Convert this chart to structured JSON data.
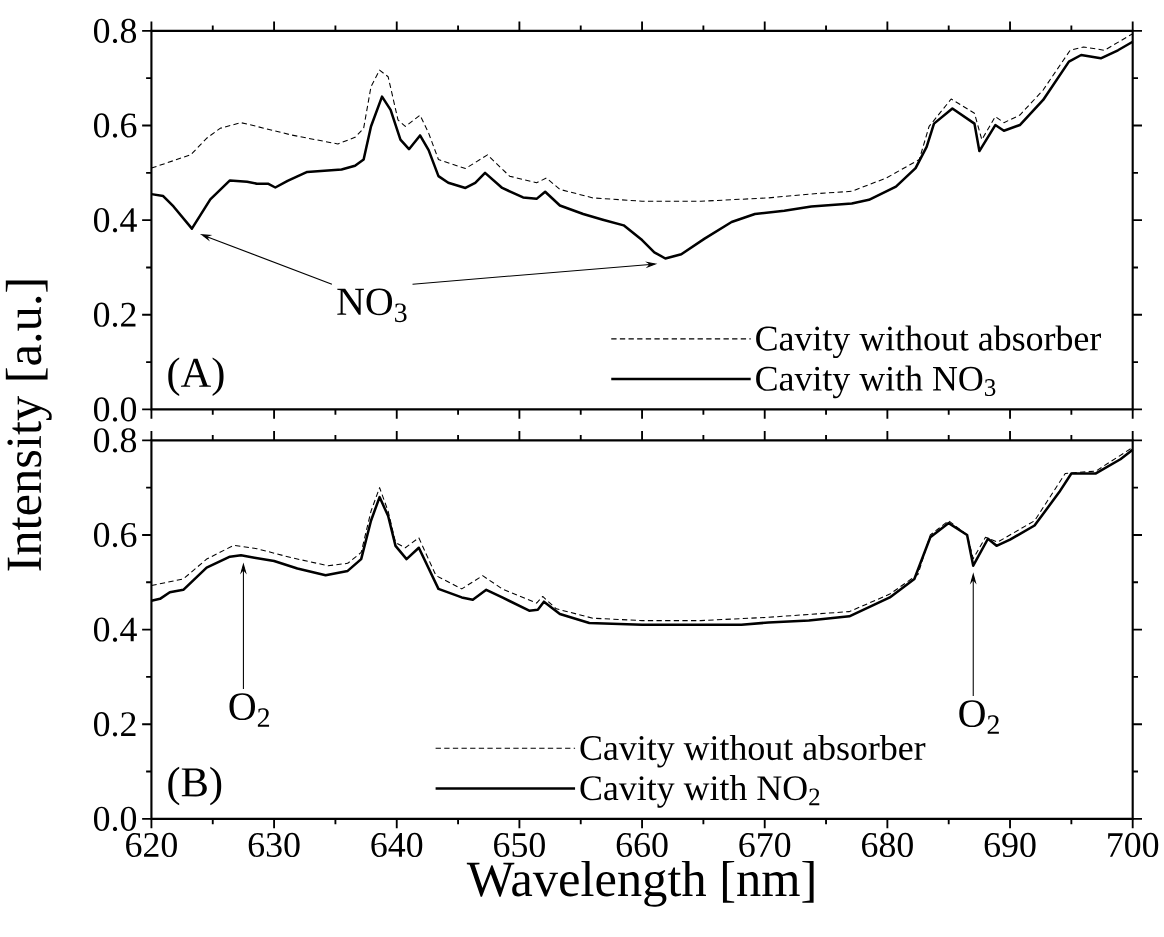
{
  "chart_data": [
    {
      "type": "line",
      "title": "(A)",
      "ylabel": "Intensity [a.u.]",
      "xlim": [
        620,
        700
      ],
      "ylim": [
        0,
        0.8
      ],
      "xticks": [
        620,
        630,
        640,
        650,
        660,
        670,
        680,
        690,
        700
      ],
      "yticks": [
        {
          "value": 0,
          "label": "0.0"
        },
        {
          "value": 0.2,
          "label": "0.2"
        },
        {
          "value": 0.4,
          "label": "0.4"
        },
        {
          "value": 0.6,
          "label": "0.6"
        },
        {
          "value": 0.8,
          "label": "0.8"
        }
      ],
      "tick_labels": "y",
      "legend": "bottom right",
      "annotations": [
        "NO$_{3}$"
      ],
      "series": [
        {
          "name": "Cavity without absorber",
          "color": "#000000",
          "line_style": "dashed",
          "x": [
            620,
            623.2,
            624.5,
            625.6,
            627.3,
            628.6,
            631.4,
            635.2,
            636.6,
            637.3,
            637.9,
            638.6,
            639.3,
            640.1,
            640.7,
            641.9,
            642.6,
            643.4,
            645.6,
            647.4,
            649.2,
            651.4,
            652.2,
            653.3,
            656.0,
            660.0,
            664.8,
            670.3,
            673.6,
            677.1,
            679.9,
            682.6,
            683.4,
            685.2,
            687.1,
            687.7,
            688.8,
            689.5,
            690.8,
            692.7,
            694.9,
            696.0,
            697.7,
            700
          ],
          "values": [
            0.51,
            0.538,
            0.573,
            0.594,
            0.606,
            0.598,
            0.58,
            0.561,
            0.575,
            0.594,
            0.682,
            0.717,
            0.703,
            0.612,
            0.598,
            0.622,
            0.584,
            0.528,
            0.509,
            0.538,
            0.493,
            0.479,
            0.489,
            0.465,
            0.447,
            0.44,
            0.44,
            0.447,
            0.455,
            0.461,
            0.489,
            0.528,
            0.598,
            0.656,
            0.626,
            0.57,
            0.619,
            0.606,
            0.622,
            0.675,
            0.759,
            0.766,
            0.759,
            0.794
          ]
        },
        {
          "name": "Cavity with NO$_{3}$",
          "color": "#000000",
          "line_style": "solid",
          "x": [
            620,
            620.96,
            621.8,
            623.3,
            624.8,
            626.4,
            627.8,
            628.6,
            629.5,
            630.1,
            631.1,
            632.7,
            635.5,
            636.6,
            637.3,
            637.9,
            638.8,
            639.5,
            640.3,
            641.0,
            641.9,
            642.6,
            643.4,
            644.2,
            645.6,
            646.4,
            647.2,
            648.6,
            650.3,
            651.4,
            652.1,
            653.3,
            655.2,
            656.8,
            658.5,
            660.0,
            661.0,
            661.9,
            663.2,
            665.1,
            667.3,
            669.2,
            671.6,
            673.8,
            677.1,
            678.5,
            680.7,
            682.3,
            683.2,
            683.8,
            685.3,
            687.1,
            687.5,
            688.8,
            689.5,
            690.8,
            692.7,
            694.8,
            695.8,
            697.4,
            698.8,
            700
          ],
          "values": [
            0.455,
            0.451,
            0.429,
            0.382,
            0.444,
            0.484,
            0.481,
            0.477,
            0.477,
            0.469,
            0.483,
            0.502,
            0.507,
            0.515,
            0.528,
            0.598,
            0.661,
            0.633,
            0.57,
            0.55,
            0.579,
            0.548,
            0.493,
            0.479,
            0.468,
            0.479,
            0.5,
            0.468,
            0.448,
            0.445,
            0.46,
            0.431,
            0.413,
            0.401,
            0.389,
            0.358,
            0.332,
            0.319,
            0.328,
            0.361,
            0.396,
            0.413,
            0.42,
            0.429,
            0.435,
            0.443,
            0.471,
            0.51,
            0.555,
            0.604,
            0.636,
            0.604,
            0.546,
            0.601,
            0.589,
            0.601,
            0.654,
            0.735,
            0.749,
            0.742,
            0.759,
            0.777
          ]
        }
      ]
    },
    {
      "type": "line",
      "title": "(B)",
      "xlabel": "Wavelength [nm]",
      "xlim": [
        620,
        700
      ],
      "ylim": [
        0,
        0.8
      ],
      "xticks": [
        620,
        630,
        640,
        650,
        660,
        670,
        680,
        690,
        700
      ],
      "yticks": [
        {
          "value": 0,
          "label": "0.0"
        },
        {
          "value": 0.2,
          "label": "0.2"
        },
        {
          "value": 0.4,
          "label": "0.4"
        },
        {
          "value": 0.6,
          "label": "0.6"
        },
        {
          "value": 0.8,
          "label": "0.8"
        }
      ],
      "legend": "bottom",
      "annotations": [
        "O$_{2}$",
        "O$_{2}$"
      ],
      "series": [
        {
          "name": "Cavity without absorber",
          "color": "#000000",
          "line_style": "dashed",
          "x": [
            620,
            622.6,
            624.5,
            626.7,
            628.6,
            631.4,
            634.4,
            636.0,
            637.1,
            637.9,
            638.6,
            639.3,
            639.9,
            640.7,
            641.8,
            643.2,
            645.3,
            647.0,
            648.6,
            651.4,
            651.9,
            653.0,
            656.0,
            660,
            664.8,
            670.3,
            676.9,
            680.2,
            682.5,
            683.5,
            685.0,
            686.5,
            687.0,
            688.0,
            689.0,
            692.0,
            694.5,
            697.0,
            700
          ],
          "values": [
            0.493,
            0.507,
            0.549,
            0.578,
            0.571,
            0.552,
            0.535,
            0.54,
            0.563,
            0.65,
            0.7,
            0.65,
            0.584,
            0.573,
            0.594,
            0.514,
            0.486,
            0.514,
            0.486,
            0.456,
            0.47,
            0.444,
            0.424,
            0.419,
            0.419,
            0.426,
            0.438,
            0.475,
            0.517,
            0.6,
            0.63,
            0.6,
            0.55,
            0.595,
            0.585,
            0.63,
            0.73,
            0.735,
            0.785
          ]
        },
        {
          "name": "Cavity with NO$_{2}$",
          "color": "#000000",
          "line_style": "solid",
          "x": [
            620,
            620.7,
            621.5,
            622.6,
            624.5,
            626.4,
            627.3,
            628.4,
            630.0,
            631.9,
            634.2,
            636.0,
            637.1,
            637.9,
            638.6,
            639.3,
            639.9,
            640.8,
            641.8,
            643.4,
            645.3,
            646.2,
            647.3,
            648.6,
            650.8,
            651.5,
            652.0,
            653.3,
            655.7,
            660,
            668.1,
            670.3,
            673.6,
            676.9,
            680.2,
            682.2,
            683.5,
            685.0,
            686.5,
            687.0,
            688.2,
            688.9,
            690.0,
            692.0,
            694.0,
            695.0,
            697.0,
            699.0,
            700
          ],
          "values": [
            0.461,
            0.465,
            0.479,
            0.484,
            0.531,
            0.554,
            0.557,
            0.552,
            0.545,
            0.529,
            0.515,
            0.524,
            0.549,
            0.63,
            0.68,
            0.64,
            0.577,
            0.549,
            0.573,
            0.486,
            0.468,
            0.463,
            0.484,
            0.468,
            0.44,
            0.442,
            0.459,
            0.433,
            0.414,
            0.41,
            0.41,
            0.415,
            0.419,
            0.428,
            0.468,
            0.507,
            0.595,
            0.625,
            0.6,
            0.535,
            0.592,
            0.577,
            0.59,
            0.62,
            0.69,
            0.73,
            0.73,
            0.76,
            0.78
          ]
        }
      ]
    }
  ]
}
